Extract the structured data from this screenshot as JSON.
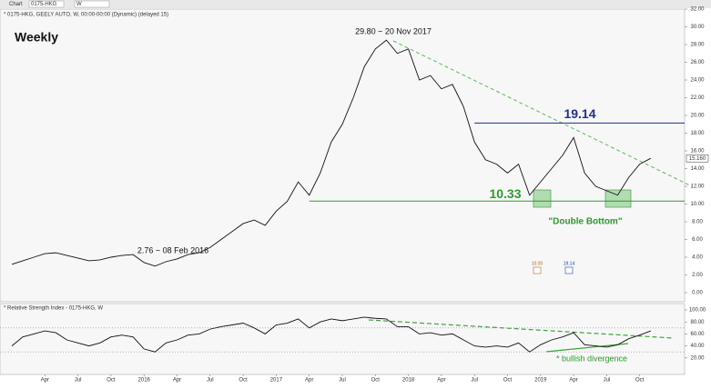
{
  "toolbar": {
    "menu": "Chart",
    "symbol": "0175-HKG",
    "interval": "W"
  },
  "chart_data": [
    {
      "type": "line",
      "title": "* 0175-HKG, GEELY AUTO, W, 00:00-00:00 (Dynamic) (delayed 15)",
      "subtitle": "Weekly",
      "series": [
        {
          "name": "0175-HKG",
          "color": "#111111",
          "values": [
            3.2,
            3.6,
            4.0,
            4.4,
            4.5,
            4.2,
            3.9,
            3.6,
            3.7,
            4.0,
            4.2,
            4.3,
            3.4,
            3.0,
            3.5,
            3.8,
            4.3,
            4.5,
            5.1,
            6.0,
            6.9,
            7.8,
            8.2,
            7.6,
            9.2,
            10.3,
            12.5,
            11.0,
            13.5,
            17.0,
            19.0,
            22.0,
            25.5,
            27.5,
            28.5,
            27.0,
            27.5,
            24.0,
            24.5,
            23.0,
            23.5,
            21.0,
            17.0,
            15.0,
            14.5,
            13.5,
            14.5,
            11.0,
            12.5,
            14.0,
            15.5,
            17.5,
            13.5,
            12.0,
            11.5,
            11.0,
            13.0,
            14.5,
            15.16
          ]
        }
      ],
      "ylim": [
        0,
        32
      ],
      "yticks": [
        {
          "value": 0,
          "label": "0.00"
        },
        {
          "value": 2,
          "label": "2.00"
        },
        {
          "value": 4,
          "label": "4.00"
        },
        {
          "value": 6,
          "label": "6.00"
        },
        {
          "value": 8,
          "label": "8.00"
        },
        {
          "value": 10,
          "label": "10.00"
        },
        {
          "value": 12,
          "label": "12.00"
        },
        {
          "value": 14,
          "label": "14.00"
        },
        {
          "value": 16,
          "label": "16.00"
        },
        {
          "value": 18,
          "label": "18.00"
        },
        {
          "value": 20,
          "label": "20.00"
        },
        {
          "value": 22,
          "label": "22.00"
        },
        {
          "value": 24,
          "label": "24.00"
        },
        {
          "value": 26,
          "label": "26.00"
        },
        {
          "value": 28,
          "label": "28.00"
        },
        {
          "value": 30,
          "label": "30.00"
        },
        {
          "value": 32,
          "label": "32.00"
        }
      ],
      "last_price": {
        "value": 15.16,
        "label": "15.160"
      },
      "resistance": 19.14,
      "support": 10.33,
      "annotations": {
        "peak": "29.80 ~ 20 Nov 2017",
        "low": "2.76 ~ 08 Feb 2016",
        "pattern": "\"Double Bottom\""
      },
      "event_markers": [
        "10.00",
        "19.14"
      ]
    },
    {
      "type": "line",
      "title": "* Relative Strength Index - 0175-HKG, W",
      "categories": [
        null,
        null,
        null,
        "Apr",
        null,
        null,
        "Jul",
        null,
        null,
        "Oct",
        null,
        null,
        "2016",
        null,
        null,
        "Apr",
        null,
        null,
        "Jul",
        null,
        null,
        "Oct",
        null,
        null,
        "2017",
        null,
        null,
        "Apr",
        null,
        null,
        "Jul",
        null,
        null,
        "Oct",
        null,
        null,
        "2018",
        null,
        null,
        "Apr",
        null,
        null,
        "Jul",
        null,
        null,
        "Oct",
        null,
        null,
        "2019",
        null,
        null,
        "Apr",
        null,
        null,
        "Jul",
        null,
        null,
        "Oct",
        null
      ],
      "series": [
        {
          "name": "RSI",
          "color": "#111111",
          "values": [
            40,
            55,
            60,
            65,
            62,
            50,
            45,
            40,
            45,
            55,
            58,
            55,
            35,
            30,
            45,
            50,
            58,
            60,
            68,
            72,
            75,
            78,
            70,
            60,
            75,
            78,
            85,
            70,
            80,
            85,
            82,
            85,
            88,
            86,
            85,
            72,
            72,
            60,
            62,
            58,
            60,
            50,
            40,
            38,
            40,
            38,
            45,
            30,
            42,
            50,
            55,
            62,
            42,
            40,
            38,
            42,
            52,
            58,
            65
          ]
        }
      ],
      "ylim": [
        0,
        100
      ],
      "yticks": [
        {
          "value": 20,
          "label": "20.00"
        },
        {
          "value": 40,
          "label": "40.00"
        },
        {
          "value": 60,
          "label": "60.00"
        },
        {
          "value": 80,
          "label": "80.00"
        },
        {
          "value": 100,
          "label": "100.00"
        }
      ],
      "levels": [
        30,
        70
      ],
      "annotation": "* bullish divergence"
    }
  ]
}
